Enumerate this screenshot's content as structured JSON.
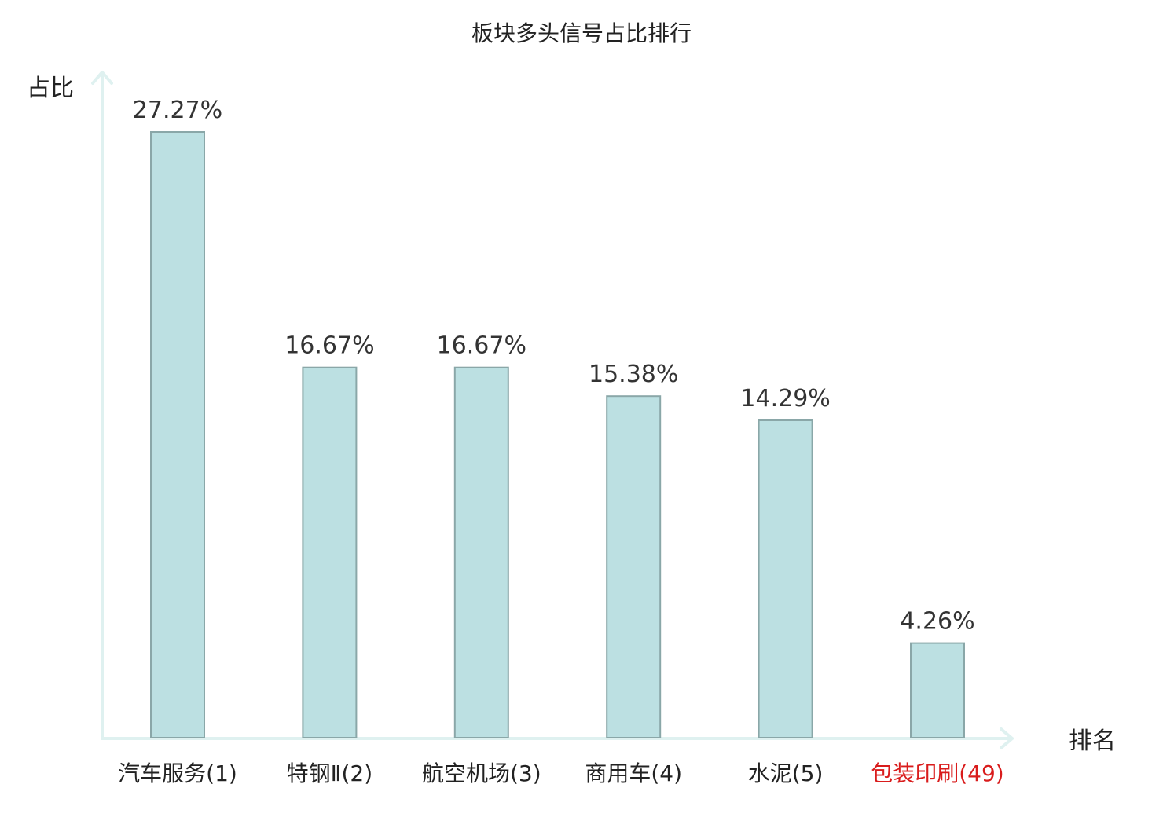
{
  "chart_data": {
    "type": "bar",
    "title": "板块多头信号占比排行",
    "xlabel": "排名",
    "ylabel": "占比",
    "categories": [
      "汽车服务(1)",
      "特钢Ⅱ(2)",
      "航空机场(3)",
      "商用车(4)",
      "水泥(5)",
      "包装印刷(49)"
    ],
    "values": [
      27.27,
      16.67,
      16.67,
      15.38,
      14.29,
      4.26
    ],
    "value_labels": [
      "27.27%",
      "16.67%",
      "16.67%",
      "15.38%",
      "14.29%",
      "4.26%"
    ],
    "highlight_index": 5,
    "ylim": [
      0,
      28
    ],
    "grid": false,
    "legend": "none"
  },
  "colors": {
    "bar_fill": "#bce0e2",
    "bar_stroke": "#8aa7a8",
    "axis": "#dff1f0",
    "highlight_text": "#d91c1c",
    "text": "#222222"
  }
}
